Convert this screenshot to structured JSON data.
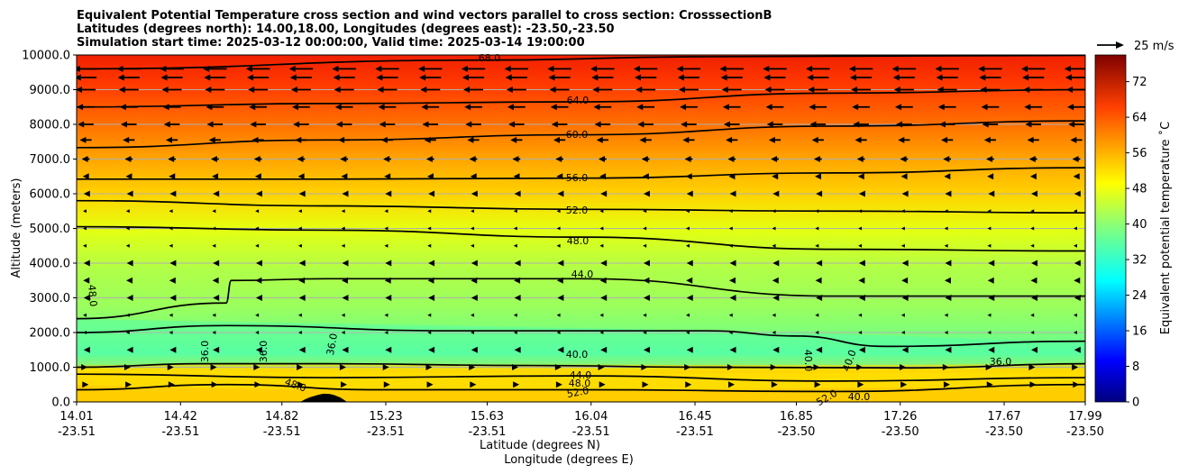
{
  "chart_data": {
    "type": "contour_cross_section",
    "title_lines": [
      "Equivalent Potential Temperature cross section and wind vectors parallel to cross section: CrosssectionB",
      "Latitudes (degrees north): 14.00,18.00, Longitudes (degrees east): -23.50,-23.50",
      "Simulation start time: 2025-03-12 00:00:00, Valid time: 2025-03-14 19:00:00"
    ],
    "xlabel_lat": "Latitude (degrees N)",
    "xlabel_lon": "Longitude (degrees E)",
    "ylabel": "Altitude (meters)",
    "ylim": [
      0,
      10000
    ],
    "y_ticks": [
      "0.0",
      "1000.0",
      "2000.0",
      "3000.0",
      "4000.0",
      "5000.0",
      "6000.0",
      "7000.0",
      "8000.0",
      "9000.0",
      "10000.0"
    ],
    "x_ticks_lat": [
      "14.01",
      "14.42",
      "14.82",
      "15.23",
      "15.63",
      "16.04",
      "16.45",
      "16.85",
      "17.26",
      "17.67",
      "17.99"
    ],
    "x_ticks_lon": [
      "-23.51",
      "-23.51",
      "-23.51",
      "-23.51",
      "-23.51",
      "-23.51",
      "-23.51",
      "-23.50",
      "-23.50",
      "-23.50",
      "-23.50"
    ],
    "grid": true,
    "colorbar": {
      "label": "Equivalent potential temperature ˚C",
      "ticks": [
        "0",
        "8",
        "16",
        "24",
        "32",
        "40",
        "48",
        "56",
        "64",
        "72"
      ],
      "range": [
        0,
        78
      ],
      "colormap": "jet"
    },
    "wind_reference": {
      "label": "25 m/s",
      "speed": 25
    },
    "contour_labels": [
      "68.0",
      "64.0",
      "60.0",
      "56.0",
      "52.0",
      "48.0",
      "44.0",
      "40.0",
      "36.0",
      "36.0",
      "36.0",
      "36.0",
      "48.0",
      "48.0",
      "44.0",
      "48.0",
      "52.0",
      "40.0",
      "40.0",
      "52.0",
      "40.0"
    ],
    "contours": [
      {
        "level": 68,
        "x": [
          14.01,
          15.6,
          16.5,
          17.99
        ],
        "y": [
          9600,
          9850,
          9950,
          9990
        ]
      },
      {
        "level": 64,
        "x": [
          14.01,
          15.0,
          16.0,
          17.0,
          17.99
        ],
        "y": [
          8500,
          8600,
          8650,
          8900,
          9000
        ]
      },
      {
        "level": 60,
        "x": [
          14.01,
          15.0,
          16.0,
          17.0,
          17.99
        ],
        "y": [
          7330,
          7550,
          7700,
          7950,
          8100
        ]
      },
      {
        "level": 56,
        "x": [
          14.01,
          15.0,
          16.0,
          17.0,
          17.99
        ],
        "y": [
          6420,
          6420,
          6450,
          6600,
          6750
        ]
      },
      {
        "level": 52,
        "x": [
          14.01,
          15.0,
          16.0,
          17.0,
          17.99
        ],
        "y": [
          5800,
          5650,
          5550,
          5500,
          5450
        ]
      },
      {
        "level": 48,
        "x": [
          14.01,
          15.0,
          16.0,
          17.0,
          17.99
        ],
        "y": [
          5050,
          4950,
          4750,
          4400,
          4350
        ]
      },
      {
        "level": 44,
        "x": [
          14.01,
          14.6,
          14.62,
          15.0,
          16.0,
          17.0,
          17.99
        ],
        "y": [
          2400,
          2850,
          3500,
          3550,
          3550,
          3050,
          3050
        ]
      },
      {
        "level": 40,
        "x": [
          14.01,
          14.6,
          15.5,
          16.5,
          16.85,
          17.2,
          17.99
        ],
        "y": [
          2000,
          2200,
          2050,
          2050,
          1900,
          1600,
          1750
        ]
      },
      {
        "level": 36,
        "x": [
          14.01,
          14.5,
          15.0,
          15.8,
          16.5,
          17.3,
          17.99
        ],
        "y": [
          1000,
          1100,
          1100,
          1050,
          1000,
          980,
          1100
        ]
      },
      {
        "level": 44,
        "x": [
          14.01,
          15.0,
          16.0,
          17.0,
          17.99
        ],
        "y": [
          800,
          700,
          750,
          600,
          700
        ]
      },
      {
        "level": 48,
        "x": [
          14.01,
          14.6,
          15.2,
          16.0,
          17.0,
          17.99
        ],
        "y": [
          350,
          500,
          350,
          350,
          300,
          500
        ]
      }
    ],
    "wind_rows_altitude": [
      9600,
      9350,
      9000,
      8500,
      8000,
      7550,
      7000,
      6500,
      6000,
      5500,
      5000,
      4500,
      4000,
      3500,
      3000,
      2500,
      2000,
      1500,
      1000,
      500
    ],
    "wind_rows_speed": [
      -12,
      -11,
      -10,
      -9,
      -8,
      -6,
      -4,
      -3,
      -2,
      -1,
      -1,
      -1.5,
      -2,
      -2.5,
      -2,
      -1.5,
      -1,
      -2,
      2,
      3
    ]
  }
}
